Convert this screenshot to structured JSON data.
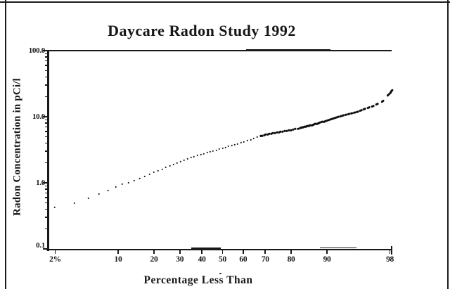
{
  "chart_data": {
    "type": "scatter",
    "title": "Daycare Radon Study 1992",
    "xlabel": "Percentage Less Than",
    "ylabel": "Radon Concentration in pCi/l",
    "units": "pCi/l",
    "x_scale": "normal-probability",
    "y_scale": "log10",
    "grid": "off",
    "legend": "none",
    "ylim": [
      0.1,
      100
    ],
    "xlim_percent": [
      1.6,
      98.1
    ],
    "y_ticks": [
      {
        "label": "100.0",
        "value": 100
      },
      {
        "label": "10.0",
        "value": 10
      },
      {
        "label": "1.0",
        "value": 1
      },
      {
        "label": "0.1",
        "value": 0.1
      }
    ],
    "x_ticks": [
      {
        "label": "2%",
        "percent": 2
      },
      {
        "label": "10",
        "percent": 10
      },
      {
        "label": "20",
        "percent": 20
      },
      {
        "label": "30",
        "percent": 30
      },
      {
        "label": "40",
        "percent": 40
      },
      {
        "label": "50",
        "percent": 50
      },
      {
        "label": "60",
        "percent": 60
      },
      {
        "label": "70",
        "percent": 70
      },
      {
        "label": "80",
        "percent": 80
      },
      {
        "label": "90",
        "percent": 90
      },
      {
        "label": "98",
        "percent": 98
      }
    ],
    "curve_points": [
      [
        2,
        0.42
      ],
      [
        3.6,
        0.5
      ],
      [
        5,
        0.59
      ],
      [
        7,
        0.7
      ],
      [
        10,
        0.9
      ],
      [
        13,
        1.03
      ],
      [
        16,
        1.2
      ],
      [
        20,
        1.43
      ],
      [
        25,
        1.73
      ],
      [
        30,
        2.07
      ],
      [
        35,
        2.4
      ],
      [
        40,
        2.7
      ],
      [
        45,
        3.0
      ],
      [
        50,
        3.3
      ],
      [
        55,
        3.7
      ],
      [
        60,
        4.1
      ],
      [
        65,
        4.7
      ],
      [
        70,
        5.4
      ],
      [
        75,
        5.8
      ],
      [
        80,
        6.3
      ],
      [
        85,
        7.2
      ],
      [
        88,
        8.0
      ],
      [
        90,
        8.8
      ],
      [
        91,
        9.3
      ],
      [
        93,
        10.4
      ],
      [
        95,
        11.9
      ],
      [
        96,
        13.2
      ],
      [
        97,
        15.3
      ],
      [
        97.6,
        17.8
      ],
      [
        98.1,
        24.5
      ]
    ],
    "sampling_segments": [
      {
        "from": 2.0,
        "to": 67.4,
        "step": 1.5
      },
      {
        "from": 68.0,
        "to": 82.7,
        "step": 0.75
      },
      {
        "from": 83.0,
        "to": 94.8,
        "step": 0.42
      },
      {
        "from": 95.1,
        "to": 98.0,
        "step": 0.4
      }
    ]
  }
}
